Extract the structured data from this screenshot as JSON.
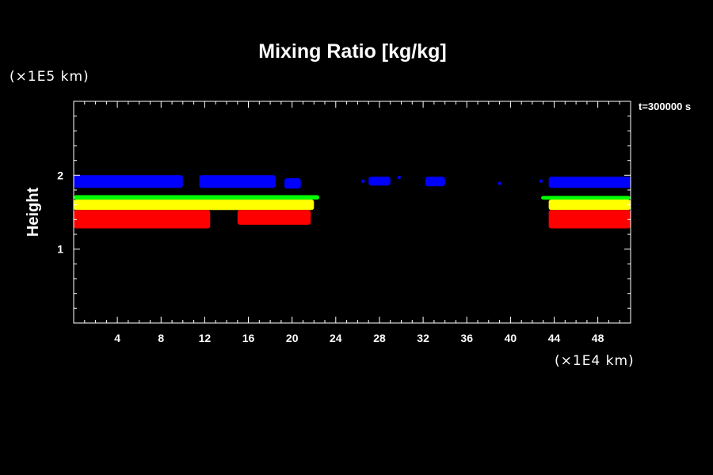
{
  "chart_data": {
    "type": "heatmap",
    "title": "Mixing Ratio [kg/kg]",
    "xlabel": "",
    "ylabel": "Height",
    "x_unit": "(×1E4 km)",
    "y_unit": "(×1E5 km)",
    "time_label": "t=300000 s",
    "xlim": [
      0,
      51
    ],
    "ylim": [
      0,
      3
    ],
    "x_ticks": [
      4,
      8,
      12,
      16,
      20,
      24,
      28,
      32,
      36,
      40,
      44,
      48
    ],
    "y_ticks": [
      1,
      2
    ],
    "x_minor_step": 1,
    "y_minor_step": 0.2,
    "background_color": "#000000",
    "axes_color": "#ffffff",
    "grid": false,
    "bands": [
      {
        "color": "#0000ff",
        "segments": [
          {
            "x0": 0,
            "x1": 10.0,
            "y_bottom": 1.83,
            "y_top": 2.0
          },
          {
            "x0": 11.5,
            "x1": 18.5,
            "y_bottom": 1.83,
            "y_top": 2.0
          },
          {
            "x0": 19.3,
            "x1": 20.8,
            "y_bottom": 1.82,
            "y_top": 1.96
          },
          {
            "x0": 27.0,
            "x1": 29.0,
            "y_bottom": 1.86,
            "y_top": 1.98
          },
          {
            "x0": 32.2,
            "x1": 34.0,
            "y_bottom": 1.85,
            "y_top": 1.98
          },
          {
            "x0": 43.5,
            "x1": 51,
            "y_bottom": 1.83,
            "y_top": 1.98
          }
        ],
        "specks": [
          [
            26.5,
            1.92
          ],
          [
            29.8,
            1.97
          ],
          [
            39.0,
            1.89
          ],
          [
            42.8,
            1.92
          ]
        ]
      },
      {
        "color": "#00ff00",
        "segments": [
          {
            "x0": 0,
            "x1": 22.5,
            "y_bottom": 1.67,
            "y_top": 1.73
          },
          {
            "x0": 42.8,
            "x1": 51,
            "y_bottom": 1.67,
            "y_top": 1.72
          }
        ]
      },
      {
        "color": "#ffff00",
        "segments": [
          {
            "x0": 0,
            "x1": 22.0,
            "y_bottom": 1.53,
            "y_top": 1.67
          },
          {
            "x0": 43.5,
            "x1": 51,
            "y_bottom": 1.53,
            "y_top": 1.67
          }
        ]
      },
      {
        "color": "#ff0000",
        "segments": [
          {
            "x0": 0,
            "x1": 12.5,
            "y_bottom": 1.28,
            "y_top": 1.53
          },
          {
            "x0": 15.0,
            "x1": 21.7,
            "y_bottom": 1.33,
            "y_top": 1.53
          },
          {
            "x0": 43.5,
            "x1": 51,
            "y_bottom": 1.28,
            "y_top": 1.53
          }
        ]
      }
    ]
  }
}
